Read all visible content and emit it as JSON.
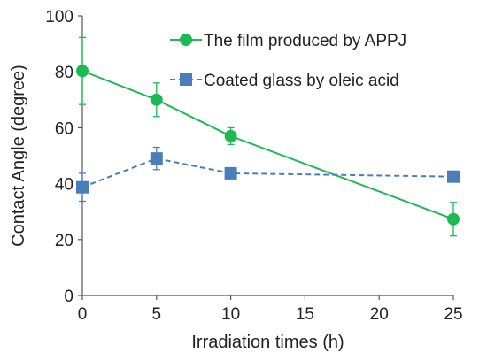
{
  "chart_data": {
    "type": "line",
    "title": "",
    "xlabel": "Irradiation times (h)",
    "ylabel": "Contact Angle (degree)",
    "xlim": [
      0,
      25
    ],
    "ylim": [
      0,
      100
    ],
    "x_ticks": [
      0,
      5,
      10,
      15,
      20,
      25
    ],
    "y_ticks": [
      0,
      20,
      40,
      60,
      80,
      100
    ],
    "grid": false,
    "legend_position": "top-right",
    "series": [
      {
        "name": "The film produced by APPJ",
        "color": "#1db954",
        "marker": "circle",
        "line_style": "solid",
        "x": [
          0,
          5,
          10,
          25
        ],
        "y": [
          80.3,
          70.0,
          57.0,
          27.3
        ],
        "error": [
          12.0,
          6.0,
          3.0,
          6.0
        ]
      },
      {
        "name": "Coated glass by oleic acid",
        "color": "#4a7ebb",
        "marker": "square",
        "line_style": "dashed",
        "x": [
          0,
          5,
          10,
          25
        ],
        "y": [
          38.7,
          49.0,
          43.7,
          42.5
        ],
        "error": [
          5.0,
          4.0,
          1.5,
          1.0
        ]
      }
    ]
  }
}
